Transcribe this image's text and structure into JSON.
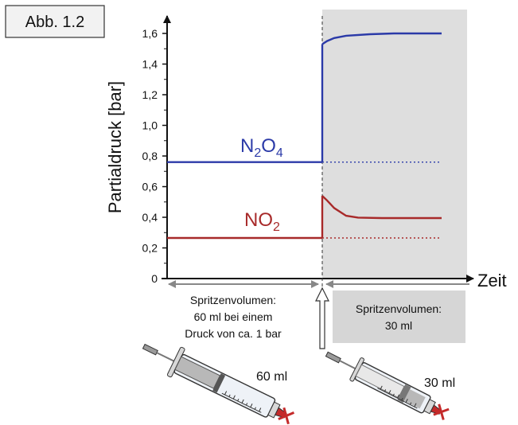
{
  "figure_label": "Abb. 1.2",
  "chart_data": {
    "type": "line",
    "ylabel": "Partialdruck [bar]",
    "xlabel": "Zeit",
    "ylim": [
      0,
      1.7
    ],
    "yticks": [
      "0",
      "0,2",
      "0,4",
      "0,6",
      "0,8",
      "1,0",
      "1,2",
      "1,4",
      "1,6"
    ],
    "ytick_values": [
      0,
      0.2,
      0.4,
      0.6,
      0.8,
      1.0,
      1.2,
      1.4,
      1.6
    ],
    "xlim": [
      0,
      1
    ],
    "compression_x": 0.5,
    "series": [
      {
        "label_main": "N",
        "label_sub1": "2",
        "label_mid": "O",
        "label_sub2": "4",
        "color": "#2b3aa8",
        "before": 0.76,
        "after": [
          [
            0.5,
            1.53
          ],
          [
            0.52,
            1.55
          ],
          [
            0.55,
            1.57
          ],
          [
            0.6,
            1.585
          ],
          [
            0.7,
            1.595
          ],
          [
            0.8,
            1.6
          ],
          [
            1.0,
            1.6
          ]
        ],
        "reference_level": 0.76
      },
      {
        "label_main": "NO",
        "label_sub1": "2",
        "label_mid": "",
        "label_sub2": "",
        "color": "#a82a2a",
        "before": 0.265,
        "after": [
          [
            0.5,
            0.54
          ],
          [
            0.52,
            0.51
          ],
          [
            0.55,
            0.46
          ],
          [
            0.6,
            0.41
          ],
          [
            0.65,
            0.398
          ],
          [
            0.75,
            0.395
          ],
          [
            1.0,
            0.395
          ]
        ],
        "reference_level": 0.265
      }
    ],
    "shaded_region": {
      "from": 0.5,
      "to": 1.0,
      "color": "#dddddd"
    }
  },
  "annotations": {
    "before_lines": [
      "Spritzenvolumen:",
      "60 ml bei einem",
      "Druck von ca. 1 bar"
    ],
    "after_lines": [
      "Spritzenvolumen:",
      "30 ml"
    ],
    "syringe_left_label": "60 ml",
    "syringe_right_label": "30 ml"
  }
}
